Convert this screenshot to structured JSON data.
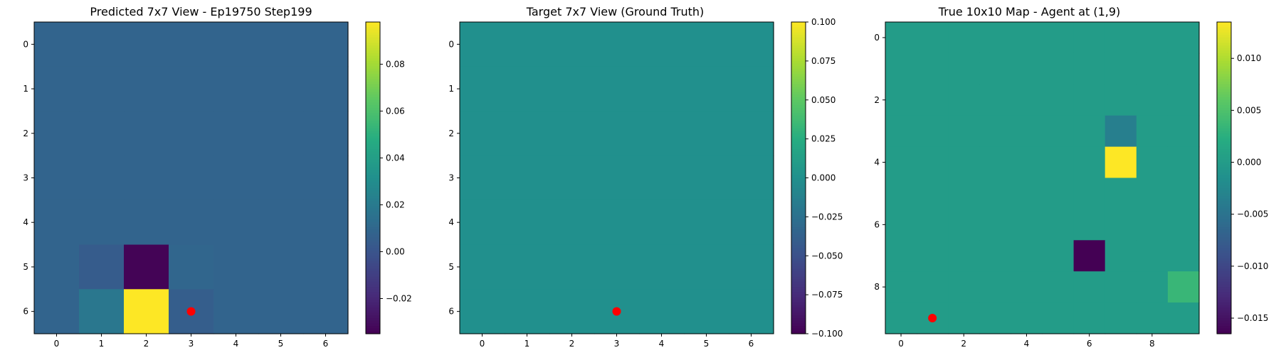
{
  "chart_data": [
    {
      "type": "heatmap",
      "title": "Predicted 7x7 View - Ep19750 Step199",
      "rows": 7,
      "cols": 7,
      "vmin": -0.035,
      "vmax": 0.098,
      "values": [
        [
          0.008,
          0.008,
          0.008,
          0.008,
          0.008,
          0.008,
          0.008
        ],
        [
          0.008,
          0.008,
          0.008,
          0.008,
          0.008,
          0.008,
          0.008
        ],
        [
          0.008,
          0.008,
          0.008,
          0.008,
          0.008,
          0.008,
          0.008
        ],
        [
          0.008,
          0.008,
          0.008,
          0.008,
          0.008,
          0.008,
          0.008
        ],
        [
          0.008,
          0.008,
          0.008,
          0.008,
          0.008,
          0.008,
          0.008
        ],
        [
          0.008,
          0.004,
          -0.034,
          0.009,
          0.008,
          0.008,
          0.008
        ],
        [
          0.008,
          0.018,
          0.098,
          0.005,
          0.008,
          0.008,
          0.008
        ]
      ],
      "x_ticks": [
        "0",
        "1",
        "2",
        "3",
        "4",
        "5",
        "6"
      ],
      "y_ticks": [
        "0",
        "1",
        "2",
        "3",
        "4",
        "5",
        "6"
      ],
      "colorbar_ticks": [
        {
          "value": 0.08,
          "label": "0.08"
        },
        {
          "value": 0.06,
          "label": "0.06"
        },
        {
          "value": 0.04,
          "label": "0.04"
        },
        {
          "value": 0.02,
          "label": "0.02"
        },
        {
          "value": 0.0,
          "label": "0.00"
        },
        {
          "value": -0.02,
          "label": "−0.02"
        }
      ],
      "marker": {
        "x": 3,
        "y": 6,
        "color": "#ff0000"
      }
    },
    {
      "type": "heatmap",
      "title": "Target 7x7 View (Ground Truth)",
      "rows": 7,
      "cols": 7,
      "vmin": -0.1,
      "vmax": 0.1,
      "values": [
        [
          0,
          0,
          0,
          0,
          0,
          0,
          0
        ],
        [
          0,
          0,
          0,
          0,
          0,
          0,
          0
        ],
        [
          0,
          0,
          0,
          0,
          0,
          0,
          0
        ],
        [
          0,
          0,
          0,
          0,
          0,
          0,
          0
        ],
        [
          0,
          0,
          0,
          0,
          0,
          0,
          0
        ],
        [
          0,
          0,
          0,
          0,
          0,
          0,
          0
        ],
        [
          0,
          0,
          0,
          0,
          0,
          0,
          0
        ]
      ],
      "x_ticks": [
        "0",
        "1",
        "2",
        "3",
        "4",
        "5",
        "6"
      ],
      "y_ticks": [
        "0",
        "1",
        "2",
        "3",
        "4",
        "5",
        "6"
      ],
      "colorbar_ticks": [
        {
          "value": 0.1,
          "label": "0.100"
        },
        {
          "value": 0.075,
          "label": "0.075"
        },
        {
          "value": 0.05,
          "label": "0.050"
        },
        {
          "value": 0.025,
          "label": "0.025"
        },
        {
          "value": 0.0,
          "label": "0.000"
        },
        {
          "value": -0.025,
          "label": "−0.025"
        },
        {
          "value": -0.05,
          "label": "−0.050"
        },
        {
          "value": -0.075,
          "label": "−0.075"
        },
        {
          "value": -0.1,
          "label": "−0.100"
        }
      ],
      "marker": {
        "x": 3,
        "y": 6,
        "color": "#ff0000"
      }
    },
    {
      "type": "heatmap",
      "title": "True 10x10 Map - Agent at (1,9)",
      "rows": 10,
      "cols": 10,
      "vmin": -0.0165,
      "vmax": 0.0135,
      "values": [
        [
          0,
          0,
          0,
          0,
          0,
          0,
          0,
          0,
          0,
          0
        ],
        [
          0,
          0,
          0,
          0,
          0,
          0,
          0,
          0,
          0,
          0
        ],
        [
          0,
          0,
          0,
          0,
          0,
          0,
          0,
          0,
          0,
          0
        ],
        [
          0,
          0,
          0,
          0,
          0,
          0,
          0,
          -0.0035,
          0,
          0
        ],
        [
          0,
          0,
          0,
          0,
          0,
          0,
          0,
          0.0135,
          0,
          0
        ],
        [
          0,
          0,
          0,
          0,
          0,
          0,
          0,
          0,
          0,
          0
        ],
        [
          0,
          0,
          0,
          0,
          0,
          0,
          0,
          0,
          0,
          0
        ],
        [
          0,
          0,
          0,
          0,
          0,
          0,
          -0.0165,
          0,
          0,
          0
        ],
        [
          0,
          0,
          0,
          0,
          0,
          0,
          0,
          0,
          0,
          0.0035
        ],
        [
          0,
          0,
          0,
          0,
          0,
          0,
          0,
          0,
          0,
          0
        ]
      ],
      "x_ticks": [
        "0",
        "",
        "2",
        "",
        "4",
        "",
        "6",
        "",
        "8",
        ""
      ],
      "y_ticks": [
        "0",
        "",
        "2",
        "",
        "4",
        "",
        "6",
        "",
        "8",
        ""
      ],
      "colorbar_ticks": [
        {
          "value": 0.01,
          "label": "0.010"
        },
        {
          "value": 0.005,
          "label": "0.005"
        },
        {
          "value": 0.0,
          "label": "0.000"
        },
        {
          "value": -0.005,
          "label": "−0.005"
        },
        {
          "value": -0.01,
          "label": "−0.010"
        },
        {
          "value": -0.015,
          "label": "−0.015"
        }
      ],
      "marker": {
        "x": 1,
        "y": 9,
        "color": "#ff0000"
      }
    }
  ]
}
